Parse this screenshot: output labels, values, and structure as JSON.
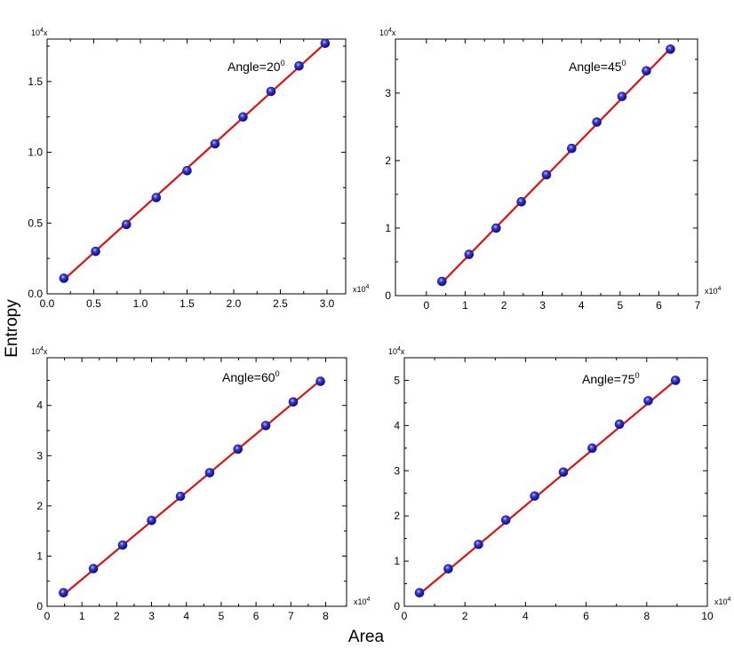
{
  "figure": {
    "ylabel": "Entropy",
    "xlabel": "Area"
  },
  "chart_data": [
    {
      "type": "scatter",
      "annotation": "Angle=20",
      "annotation_sup": "0",
      "x_multiplier_label": "x10",
      "x_multiplier_sup": "4",
      "y_multiplier_label": "10",
      "y_multiplier_sup": "4",
      "y_multiplier_suffix": "x",
      "xlim": [
        0,
        3.2
      ],
      "ylim": [
        0,
        1.8
      ],
      "xticks": [
        0.0,
        0.5,
        1.0,
        1.5,
        2.0,
        2.5,
        3.0
      ],
      "xtick_labels": [
        "0.0",
        "0.5",
        "1.0",
        "1.5",
        "2.0",
        "2.5",
        "3.0"
      ],
      "yticks": [
        0.0,
        0.5,
        1.0,
        1.5
      ],
      "ytick_labels": [
        "0.0",
        "0.5",
        "1.0",
        "1.5"
      ],
      "x": [
        0.18,
        0.52,
        0.85,
        1.17,
        1.5,
        1.8,
        2.1,
        2.4,
        2.7,
        2.98
      ],
      "y": [
        0.11,
        0.3,
        0.49,
        0.68,
        0.87,
        1.06,
        1.25,
        1.43,
        1.61,
        1.77
      ],
      "fit_line": [
        [
          0.18,
          0.1
        ],
        [
          2.98,
          1.77
        ]
      ],
      "marker_color": "#1a1aa8",
      "line_color": "#e01010"
    },
    {
      "type": "scatter",
      "annotation": "Angle=45",
      "annotation_sup": "0",
      "x_multiplier_label": "x10",
      "x_multiplier_sup": "4",
      "y_multiplier_label": "10",
      "y_multiplier_sup": "4",
      "y_multiplier_suffix": "x",
      "xlim": [
        -0.8,
        7
      ],
      "ylim": [
        0,
        3.8
      ],
      "xticks": [
        0,
        1,
        2,
        3,
        4,
        5,
        6,
        7
      ],
      "xtick_labels": [
        "0",
        "1",
        "2",
        "3",
        "4",
        "5",
        "6",
        "7"
      ],
      "yticks": [
        0,
        1,
        2,
        3
      ],
      "ytick_labels": [
        "0",
        "1",
        "2",
        "3"
      ],
      "x": [
        0.4,
        1.1,
        1.8,
        2.45,
        3.1,
        3.75,
        4.4,
        5.05,
        5.68,
        6.3
      ],
      "y": [
        0.21,
        0.61,
        1.0,
        1.39,
        1.79,
        2.18,
        2.57,
        2.95,
        3.33,
        3.65
      ],
      "fit_line": [
        [
          0.4,
          0.19
        ],
        [
          6.3,
          3.66
        ]
      ],
      "marker_color": "#1a1aa8",
      "line_color": "#e01010"
    },
    {
      "type": "scatter",
      "annotation": "Angle=60",
      "annotation_sup": "0",
      "x_multiplier_label": "x10",
      "x_multiplier_sup": "4",
      "y_multiplier_label": "10",
      "y_multiplier_sup": "4",
      "y_multiplier_suffix": "x",
      "xlim": [
        0,
        8.6
      ],
      "ylim": [
        0,
        4.95
      ],
      "xticks": [
        0,
        1,
        2,
        3,
        4,
        5,
        6,
        7,
        8
      ],
      "xtick_labels": [
        "0",
        "1",
        "2",
        "3",
        "4",
        "5",
        "6",
        "7",
        "8"
      ],
      "yticks": [
        0,
        1,
        2,
        3,
        4
      ],
      "ytick_labels": [
        "0",
        "1",
        "2",
        "3",
        "4"
      ],
      "x": [
        0.47,
        1.33,
        2.17,
        3.0,
        3.83,
        4.67,
        5.48,
        6.28,
        7.07,
        7.85
      ],
      "y": [
        0.27,
        0.75,
        1.22,
        1.71,
        2.19,
        2.66,
        3.13,
        3.6,
        4.07,
        4.48
      ],
      "fit_line": [
        [
          0.47,
          0.23
        ],
        [
          7.85,
          4.5
        ]
      ],
      "marker_color": "#1a1aa8",
      "line_color": "#e01010"
    },
    {
      "type": "scatter",
      "annotation": "Angle=75",
      "annotation_sup": "0",
      "x_multiplier_label": "x10",
      "x_multiplier_sup": "4",
      "y_multiplier_label": "10",
      "y_multiplier_sup": "4",
      "y_multiplier_suffix": "x",
      "xlim": [
        0,
        10
      ],
      "ylim": [
        0,
        5.5
      ],
      "xticks": [
        0,
        2,
        4,
        6,
        8,
        10
      ],
      "xtick_labels": [
        "0",
        "2",
        "4",
        "6",
        "8",
        "10"
      ],
      "yticks": [
        0,
        1,
        2,
        3,
        4,
        5
      ],
      "ytick_labels": [
        "0",
        "1",
        "2",
        "3",
        "4",
        "5"
      ],
      "x": [
        0.5,
        1.45,
        2.45,
        3.35,
        4.3,
        5.25,
        6.2,
        7.1,
        8.05,
        8.95
      ],
      "y": [
        0.3,
        0.83,
        1.37,
        1.91,
        2.44,
        2.97,
        3.5,
        4.03,
        4.55,
        5.0
      ],
      "fit_line": [
        [
          0.5,
          0.27
        ],
        [
          8.95,
          5.0
        ]
      ],
      "marker_color": "#1a1aa8",
      "line_color": "#e01010"
    }
  ]
}
